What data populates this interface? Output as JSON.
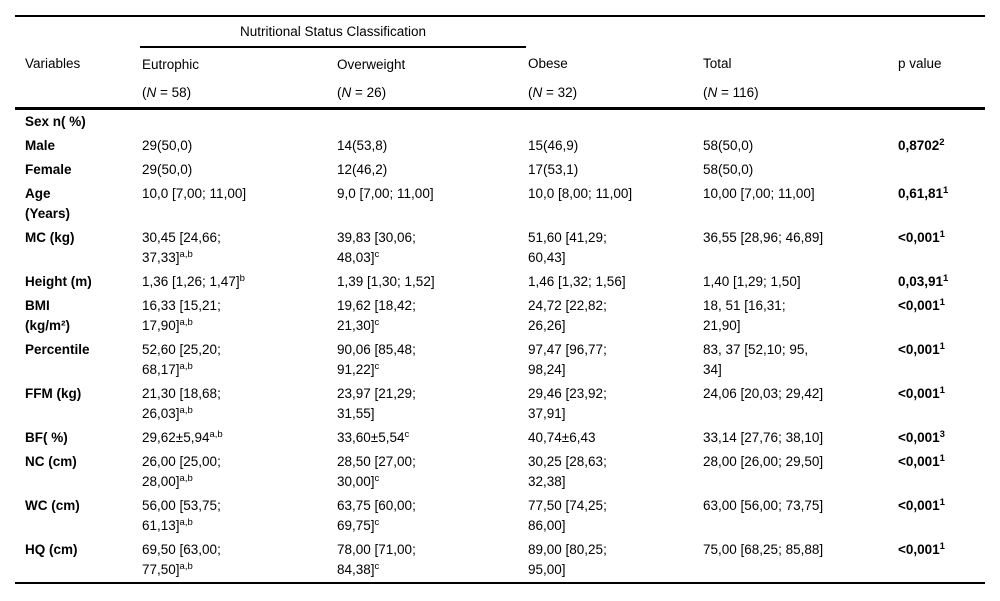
{
  "header": {
    "spanner": "Nutritional Status Classification",
    "columns": [
      "Variables",
      "Eutrophic",
      "Overweight",
      "Obese",
      "Total",
      "p value"
    ],
    "group_sizes": [
      "(*{N} = 58)",
      "(*{N} = 26)",
      "(*{N} = 32)",
      "(*{N} = 116)"
    ]
  },
  "rows": [
    {
      "label": "Sex n( %)",
      "cells": [
        "",
        "",
        "",
        "",
        ""
      ]
    },
    {
      "label": "Male",
      "cells": [
        "29(50,0)",
        "14(53,8)",
        "15(46,9)",
        "58(50,0)",
        "0,8702^{2}"
      ]
    },
    {
      "label": "Female",
      "cells": [
        "29(50,0)",
        "12(46,2)",
        "17(53,1)",
        "58(50,0)",
        ""
      ]
    },
    {
      "label": [
        "Age",
        "(Years)"
      ],
      "cells": [
        "10,0 [7,00; 11,00]",
        "9,0 [7,00; 11,00]",
        "10,0 [8,00; 11,00]",
        "10,00 [7,00; 11,00]",
        "0,61,81^{1}"
      ]
    },
    {
      "label": "MC (kg)",
      "cells": [
        [
          "30,45 [24,66;",
          "37,33]^{a,b}"
        ],
        [
          "39,83 [30,06;",
          "48,03]^{c}"
        ],
        [
          "51,60 [41,29;",
          "60,43]"
        ],
        "36,55 [28,96; 46,89]",
        "<0,001^{1}"
      ]
    },
    {
      "label": "Height (m)",
      "cells": [
        "1,36 [1,26; 1,47]^{b}",
        "1,39 [1,30; 1,52]",
        "1,46 [1,32; 1,56]",
        "1,40 [1,29; 1,50]",
        "0,03,91^{1}"
      ]
    },
    {
      "label": [
        "BMI",
        "(kg/m²)"
      ],
      "cells": [
        [
          "16,33 [15,21;",
          "17,90]^{a,b}"
        ],
        [
          "19,62 [18,42;",
          "21,30]^{c}"
        ],
        [
          "24,72 [22,82;",
          "26,26]"
        ],
        [
          "18, 51 [16,31;",
          "21,90]"
        ],
        "<0,001^{1}"
      ]
    },
    {
      "label": "Percentile",
      "cells": [
        [
          "52,60 [25,20;",
          "68,17]^{a,b}"
        ],
        [
          "90,06 [85,48;",
          "91,22]^{c}"
        ],
        [
          "97,47 [96,77;",
          "98,24]"
        ],
        [
          "83, 37 [52,10; 95,",
          "34]"
        ],
        "<0,001^{1}"
      ]
    },
    {
      "label": "FFM (kg)",
      "cells": [
        [
          "21,30 [18,68;",
          "26,03]^{a,b}"
        ],
        [
          "23,97 [21,29;",
          "31,55]"
        ],
        [
          "29,46 [23,92;",
          "37,91]"
        ],
        "24,06 [20,03; 29,42]",
        "<0,001^{1}"
      ]
    },
    {
      "label": "BF( %)",
      "cells": [
        "29,62±5,94^{a,b}",
        "33,60±5,54^{c}",
        "40,74±6,43",
        "33,14 [27,76; 38,10]",
        "<0,001^{3}"
      ]
    },
    {
      "label": "NC (cm)",
      "cells": [
        [
          "26,00 [25,00;",
          "28,00]^{a,b}"
        ],
        [
          "28,50 [27,00;",
          "30,00]^{c}"
        ],
        [
          "30,25 [28,63;",
          "32,38]"
        ],
        "28,00 [26,00; 29,50]",
        "<0,001^{1}"
      ]
    },
    {
      "label": "WC (cm)",
      "cells": [
        [
          "56,00 [53,75;",
          "61,13]^{a,b}"
        ],
        [
          "63,75 [60,00;",
          "69,75]^{c}"
        ],
        [
          "77,50 [74,25;",
          "86,00]"
        ],
        "63,00 [56,00; 73,75]",
        "<0,001^{1}"
      ]
    },
    {
      "label": "HQ (cm)",
      "cells": [
        [
          "69,50 [63,00;",
          "77,50]^{a,b}"
        ],
        [
          "78,00 [71,00;",
          "84,38]^{c}"
        ],
        [
          "89,00 [80,25;",
          "95,00]"
        ],
        "75,00 [68,25; 85,88]",
        "<0,001^{1}"
      ]
    }
  ]
}
